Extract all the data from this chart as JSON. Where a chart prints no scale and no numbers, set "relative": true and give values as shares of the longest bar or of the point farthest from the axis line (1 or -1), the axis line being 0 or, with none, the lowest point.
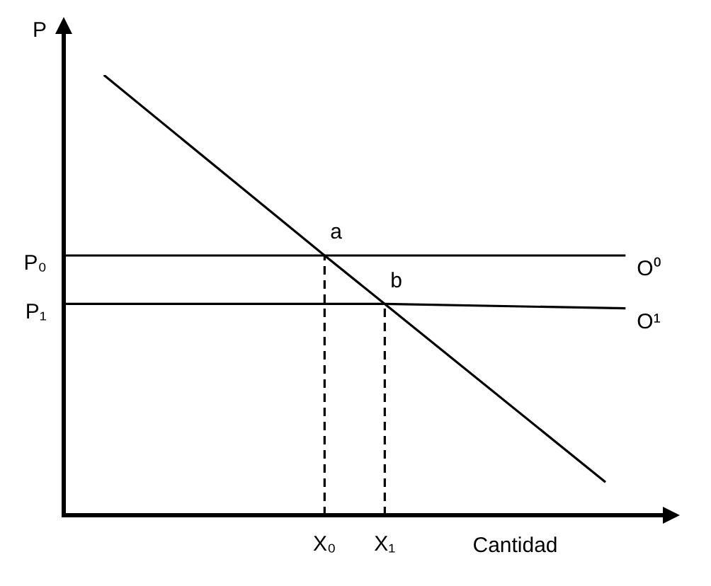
{
  "chart_data": {
    "type": "line",
    "relative": true,
    "xlabel": "Cantidad",
    "ylabel": "P",
    "legend": false,
    "grid": false,
    "tick_labels": "x",
    "marker": "none",
    "categories": [
      null,
      null,
      null,
      null,
      null,
      null,
      null,
      null,
      null,
      null,
      null,
      null,
      null,
      "X₀",
      null,
      null,
      "X₁",
      null,
      null,
      null,
      null,
      null,
      null,
      null,
      null,
      null,
      null,
      null,
      null,
      null,
      null
    ],
    "series": [
      {
        "values": [
          null,
          null,
          1.0,
          null,
          null,
          null,
          null,
          null,
          null,
          null,
          null,
          null,
          null,
          0.59,
          null,
          null,
          0.48,
          null,
          null,
          null,
          null,
          null,
          null,
          null,
          null,
          null,
          null,
          0.075,
          null,
          null,
          null
        ],
        "color": "#000000",
        "line_style": "solid"
      },
      {
        "name": "O⁰",
        "values": [
          0.59,
          null,
          null,
          null,
          null,
          null,
          null,
          null,
          null,
          null,
          null,
          null,
          null,
          0.59,
          null,
          null,
          null,
          null,
          null,
          null,
          null,
          null,
          null,
          null,
          null,
          null,
          null,
          null,
          0.59,
          null,
          null
        ],
        "color": "#000000",
        "line_style": "solid"
      },
      {
        "name": "O¹",
        "values": [
          0.48,
          null,
          null,
          null,
          null,
          null,
          null,
          null,
          null,
          null,
          null,
          null,
          null,
          null,
          null,
          null,
          0.48,
          null,
          null,
          null,
          null,
          null,
          null,
          null,
          null,
          null,
          null,
          null,
          0.47,
          null,
          null
        ],
        "color": "#000000",
        "line_style": "solid"
      }
    ],
    "ref_lines": [
      {
        "axis": "x",
        "value": "X₀",
        "color": "#000000",
        "line_style": "dashed"
      },
      {
        "axis": "x",
        "value": "X₁",
        "color": "#000000",
        "line_style": "dashed"
      }
    ],
    "annotations": [
      "P₀",
      "P₁",
      {
        "text": "a",
        "x": "X₀",
        "y": 0.59
      },
      {
        "text": "b",
        "x": "X₁",
        "y": 0.48
      }
    ]
  }
}
